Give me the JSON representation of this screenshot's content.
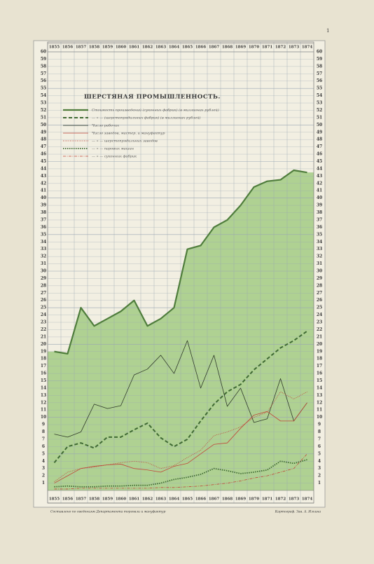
{
  "page_number": "1",
  "chart_data": {
    "type": "line",
    "title": "ШЕРСТЯНАЯ ПРОМЫШЛЕННОСТЬ.",
    "categories": [
      "1855",
      "1856",
      "1857",
      "1858",
      "1859",
      "1860",
      "1861",
      "1862",
      "1863",
      "1864",
      "1865",
      "1866",
      "1867",
      "1868",
      "1869",
      "1870",
      "1871",
      "1872",
      "1873",
      "1874"
    ],
    "ylim": [
      0,
      60
    ],
    "yticks": [
      1,
      2,
      3,
      4,
      5,
      6,
      7,
      8,
      9,
      10,
      11,
      12,
      13,
      14,
      15,
      16,
      17,
      18,
      19,
      20,
      21,
      22,
      23,
      24,
      25,
      26,
      27,
      28,
      29,
      30,
      31,
      32,
      33,
      34,
      35,
      36,
      37,
      38,
      39,
      40,
      41,
      42,
      43,
      44,
      45,
      46,
      47,
      48,
      49,
      50,
      51,
      52,
      53,
      54,
      55,
      56,
      57,
      58,
      59,
      60
    ],
    "grid": true,
    "series": [
      {
        "name": "Стоимость произведений (суконных фабрик) (в миллионах рублей)",
        "color": "#4f7d3c",
        "style": "thick-solid",
        "area": true,
        "values": [
          19,
          18.7,
          25,
          22.5,
          23.5,
          24.5,
          26,
          22.5,
          23.5,
          25,
          33,
          33.5,
          36,
          37,
          39,
          41.5,
          42.3,
          42.5,
          43.8,
          43.5
        ]
      },
      {
        "name": "— » — (шерстопрядильных фабрик) (в миллионах рублей)",
        "color": "#3f6a33",
        "style": "thick-dashed",
        "values": [
          3.8,
          6,
          6.5,
          5.8,
          7.3,
          7.3,
          8.3,
          9.2,
          7.2,
          6,
          7,
          9.5,
          11.8,
          13.5,
          14.5,
          16.5,
          18,
          19.5,
          20.5,
          21.8
        ]
      },
      {
        "name": "Число рабочих",
        "color": "#2f3a2a",
        "style": "solid",
        "values": [
          7.7,
          7.3,
          8,
          11.8,
          11.2,
          11.6,
          15.8,
          16.6,
          18.5,
          16,
          20.5,
          14,
          18.5,
          11.5,
          14,
          9.3,
          9.8,
          15.3,
          9.5,
          12
        ]
      },
      {
        "name": "Число заводов, мастер. и мануфактур",
        "color": "#c0463a",
        "style": "solid",
        "values": [
          1,
          2,
          3,
          3.3,
          3.5,
          3.6,
          3,
          2.8,
          2.5,
          3.3,
          3.7,
          5,
          6.3,
          6.5,
          8.5,
          10.3,
          10.8,
          9.5,
          9.5,
          12
        ]
      },
      {
        "name": "— » — шерстопрядильных заводов",
        "color": "#c0463a",
        "style": "dotted",
        "values": [
          1.2,
          2.5,
          3,
          3.2,
          3.5,
          3.8,
          4,
          3.8,
          3,
          3.4,
          4.5,
          5.5,
          7.5,
          8,
          8.7,
          10,
          10.7,
          13.5,
          12.5,
          13.5
        ]
      },
      {
        "name": "— » — паровых машин",
        "color": "#3f6a33",
        "style": "thick-dotted",
        "values": [
          0.5,
          0.6,
          0.5,
          0.5,
          0.6,
          0.6,
          0.7,
          0.7,
          1,
          1.5,
          1.8,
          2.2,
          3,
          2.7,
          2.3,
          2.5,
          2.8,
          4,
          3.7,
          4.2
        ]
      },
      {
        "name": "— » — суконных фабрик",
        "color": "#c0463a",
        "style": "dashdot",
        "values": [
          0.2,
          0.2,
          0.3,
          0.3,
          0.3,
          0.3,
          0.3,
          0.3,
          0.4,
          0.4,
          0.5,
          0.6,
          0.8,
          1,
          1.3,
          1.7,
          2,
          2.5,
          3,
          5
        ]
      }
    ],
    "footer_left": "Составлено по сведениям Департамента торговли и мануфактур",
    "footer_right": "Картограф. Зав. А. Ильина"
  }
}
